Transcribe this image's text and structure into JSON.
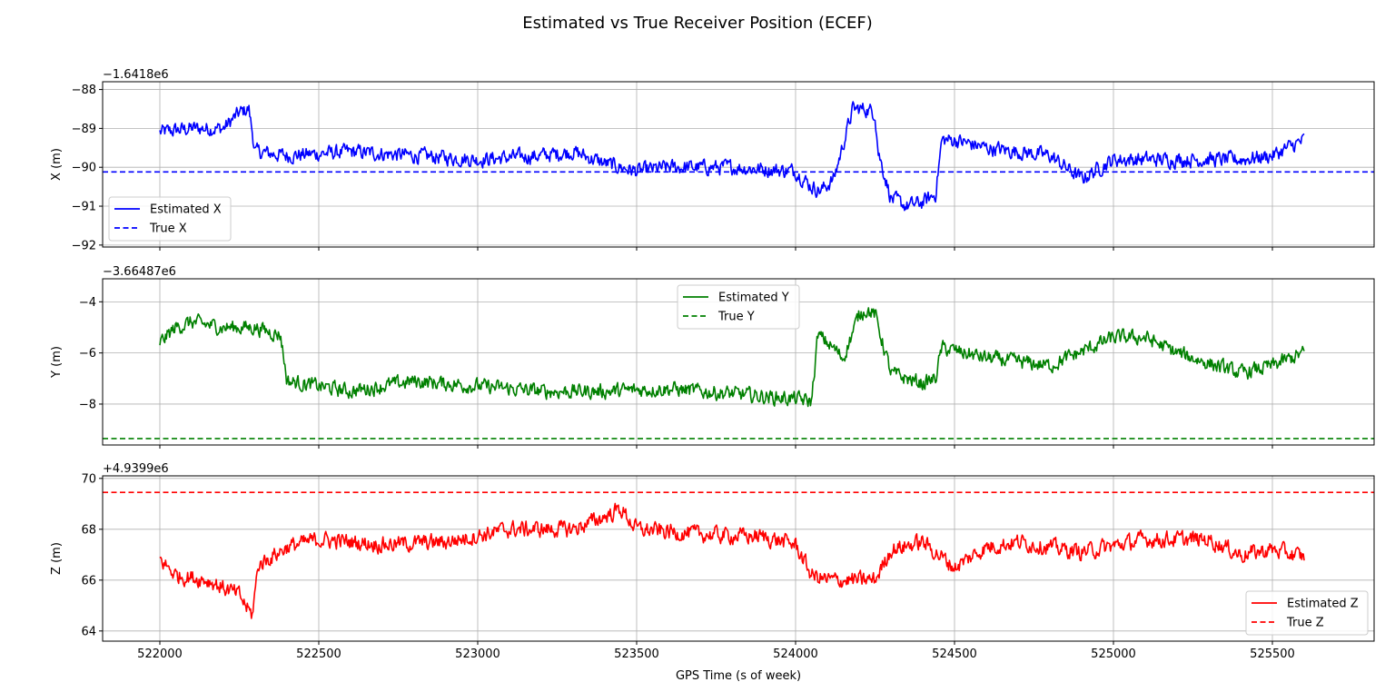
{
  "figure": {
    "title": "Estimated vs True Receiver Position (ECEF)",
    "xlabel": "GPS Time (s of week)"
  },
  "chart_data": [
    {
      "type": "line",
      "ylabel": "X (m)",
      "offset_label": "−1.6418e6",
      "xlim": [
        521820,
        525820
      ],
      "ylim": [
        -92.05,
        -87.8
      ],
      "xticks": [
        522000,
        522500,
        523000,
        523500,
        524000,
        524500,
        525000,
        525500
      ],
      "xtick_labels": [],
      "yticks": [
        -92,
        -91,
        -90,
        -89,
        -88
      ],
      "ytick_labels": [
        "−92",
        "−91",
        "−90",
        "−89",
        "−88"
      ],
      "grid": true,
      "legend_position": "lower-left",
      "color": "#0000ff",
      "series": [
        {
          "name": "Estimated X",
          "style": "solid",
          "x": [
            522000,
            522100,
            522200,
            522250,
            522280,
            522300,
            522400,
            522600,
            522800,
            523000,
            523200,
            523300,
            523400,
            523500,
            523600,
            523800,
            524000,
            524050,
            524080,
            524120,
            524180,
            524220,
            524250,
            524260,
            524300,
            524350,
            524400,
            524440,
            524460,
            524500,
            524600,
            524800,
            524900,
            525000,
            525200,
            525400,
            525500,
            525600
          ],
          "y": [
            -89.1,
            -89.0,
            -89.0,
            -88.6,
            -88.5,
            -89.6,
            -89.7,
            -89.6,
            -89.7,
            -89.8,
            -89.7,
            -89.6,
            -89.9,
            -90.1,
            -90.0,
            -90.0,
            -90.1,
            -90.5,
            -90.6,
            -90.3,
            -88.5,
            -88.5,
            -88.6,
            -89.6,
            -90.8,
            -91.0,
            -90.9,
            -90.7,
            -89.3,
            -89.3,
            -89.5,
            -89.7,
            -90.3,
            -89.8,
            -89.8,
            -89.8,
            -89.7,
            -89.3
          ],
          "noise": 0.3
        },
        {
          "name": "True X",
          "style": "dashed",
          "x": [
            521820,
            525820
          ],
          "y": [
            -90.12,
            -90.12
          ]
        }
      ]
    },
    {
      "type": "line",
      "ylabel": "Y (m)",
      "offset_label": "−3.66487e6",
      "xlim": [
        521820,
        525820
      ],
      "ylim": [
        -9.6,
        -3.1
      ],
      "xticks": [
        522000,
        522500,
        523000,
        523500,
        524000,
        524500,
        525000,
        525500
      ],
      "xtick_labels": [],
      "yticks": [
        -8,
        -6,
        -4
      ],
      "ytick_labels": [
        "−8",
        "−6",
        "−4"
      ],
      "grid": true,
      "legend_position": "upper-center",
      "color": "#008000",
      "series": [
        {
          "name": "Estimated Y",
          "style": "solid",
          "x": [
            522000,
            522050,
            522100,
            522200,
            522300,
            522380,
            522400,
            522600,
            522800,
            523000,
            523200,
            523400,
            523600,
            523800,
            524000,
            524050,
            524070,
            524100,
            524150,
            524200,
            524220,
            524250,
            524300,
            524400,
            524440,
            524460,
            524600,
            524800,
            525000,
            525100,
            525200,
            525400,
            525500,
            525600
          ],
          "y": [
            -5.6,
            -5.0,
            -4.8,
            -5.0,
            -5.0,
            -5.3,
            -7.1,
            -7.5,
            -7.1,
            -7.3,
            -7.5,
            -7.5,
            -7.4,
            -7.6,
            -7.8,
            -7.9,
            -5.3,
            -5.6,
            -6.2,
            -4.5,
            -4.3,
            -4.5,
            -6.8,
            -7.2,
            -7.0,
            -5.8,
            -6.2,
            -6.5,
            -5.4,
            -5.4,
            -6.0,
            -6.8,
            -6.5,
            -6.0
          ],
          "noise": 0.45
        },
        {
          "name": "True Y",
          "style": "dashed",
          "x": [
            521820,
            525820
          ],
          "y": [
            -9.35,
            -9.35
          ]
        }
      ]
    },
    {
      "type": "line",
      "ylabel": "Z (m)",
      "offset_label": "+4.9399e6",
      "xlim": [
        521820,
        525820
      ],
      "ylim": [
        63.6,
        70.1
      ],
      "xticks": [
        522000,
        522500,
        523000,
        523500,
        524000,
        524500,
        525000,
        525500
      ],
      "xtick_labels": [
        "522000",
        "522500",
        "523000",
        "523500",
        "524000",
        "524500",
        "525000",
        "525500"
      ],
      "yticks": [
        64,
        66,
        68,
        70
      ],
      "ytick_labels": [
        "64",
        "66",
        "68",
        "70"
      ],
      "grid": true,
      "legend_position": "lower-right",
      "color": "#ff0000",
      "series": [
        {
          "name": "Estimated Z",
          "style": "solid",
          "x": [
            522000,
            522050,
            522150,
            522250,
            522290,
            522310,
            522400,
            522500,
            522700,
            522900,
            523100,
            523300,
            523400,
            523450,
            523500,
            523700,
            523900,
            524000,
            524050,
            524100,
            524200,
            524250,
            524300,
            524400,
            524500,
            524600,
            524700,
            524900,
            525100,
            525300,
            525400,
            525500,
            525600
          ],
          "y": [
            66.8,
            66.2,
            66.0,
            65.4,
            64.6,
            66.6,
            67.3,
            67.6,
            67.4,
            67.5,
            68.0,
            68.0,
            68.5,
            68.8,
            68.0,
            67.8,
            67.7,
            67.4,
            66.2,
            66.0,
            66.0,
            66.0,
            67.2,
            67.5,
            66.5,
            67.3,
            67.5,
            67.1,
            67.6,
            67.6,
            67.0,
            67.2,
            66.9
          ],
          "noise": 0.5
        },
        {
          "name": "True Z",
          "style": "dashed",
          "x": [
            521820,
            525820
          ],
          "y": [
            69.45,
            69.45
          ]
        }
      ]
    }
  ]
}
